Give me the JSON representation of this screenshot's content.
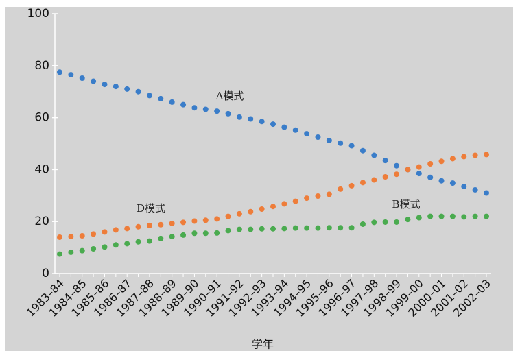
{
  "chart_data": {
    "type": "scatter",
    "x_label": "学年",
    "categories": [
      "1983–84",
      null,
      "1984–85",
      null,
      "1985–86",
      null,
      "1986–87",
      null,
      "1987–88",
      null,
      "1988–89",
      null,
      "1989–90",
      null,
      "1990–91",
      null,
      "1991–92",
      null,
      "1992–93",
      null,
      "1993–94",
      null,
      "1994–95",
      null,
      "1995–96",
      null,
      "1996–97",
      null,
      "1997–98",
      null,
      "1998–99",
      null,
      "1999–00",
      null,
      "2000–01",
      null,
      "2001–02",
      null,
      "2002–03"
    ],
    "series": [
      {
        "name": "A模式",
        "color": "#3a7dc9",
        "values": [
          77.5,
          76.5,
          75.2,
          74,
          72.8,
          72,
          71,
          70,
          68.5,
          67.3,
          66,
          65,
          63.8,
          63.2,
          62.5,
          61.5,
          60.2,
          59.5,
          58.5,
          57.5,
          56.3,
          55.2,
          53.8,
          52.5,
          51.2,
          50.2,
          49.2,
          47.3,
          45.5,
          43.5,
          41.5,
          40,
          38.5,
          37,
          35.7,
          34.8,
          33.5,
          32.2,
          31
        ]
      },
      {
        "name": "D模式",
        "color": "#ee7d3a",
        "values": [
          14,
          14.2,
          14.5,
          15.2,
          16,
          16.8,
          17.3,
          18,
          18.5,
          18.8,
          19.3,
          19.7,
          20.2,
          20.5,
          21,
          22,
          23,
          23.8,
          24.8,
          25.8,
          26.8,
          27.8,
          29,
          29.8,
          30.5,
          32.5,
          33.8,
          35,
          36,
          37.2,
          38.2,
          40,
          41,
          42.2,
          43.2,
          44.2,
          45,
          45.5,
          45.8
        ]
      },
      {
        "name": "B模式",
        "color": "#4aab4f",
        "values": [
          7.5,
          8.2,
          8.8,
          9.5,
          10.2,
          11,
          11.5,
          12.2,
          12.5,
          13.5,
          14.2,
          14.8,
          15.5,
          15.5,
          15.6,
          16.5,
          17,
          17,
          17.2,
          17.2,
          17.3,
          17.5,
          17.5,
          17.5,
          17.6,
          17.6,
          17.6,
          19,
          19.7,
          19.8,
          19.8,
          20.8,
          21.5,
          22,
          22,
          22,
          21.8,
          22,
          22
        ]
      }
    ],
    "ylim": [
      0,
      100
    ],
    "yticks": [
      0,
      20,
      40,
      60,
      80,
      100
    ]
  }
}
